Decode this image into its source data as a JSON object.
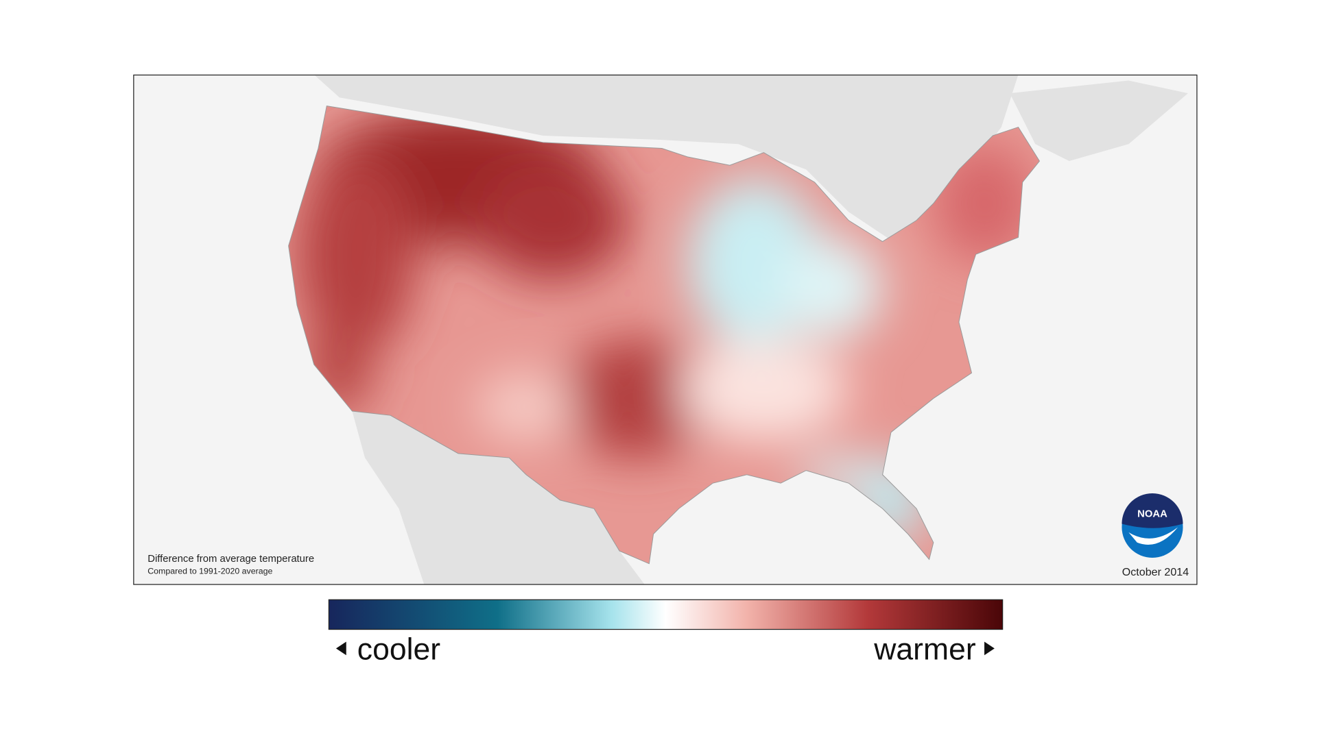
{
  "map": {
    "caption": "Difference from average temperature",
    "subcaption": "Compared to 1991-2020 average",
    "date": "October 2014",
    "logo": "NOAA"
  },
  "legend": {
    "low_label": "cooler",
    "high_label": "warmer"
  }
}
